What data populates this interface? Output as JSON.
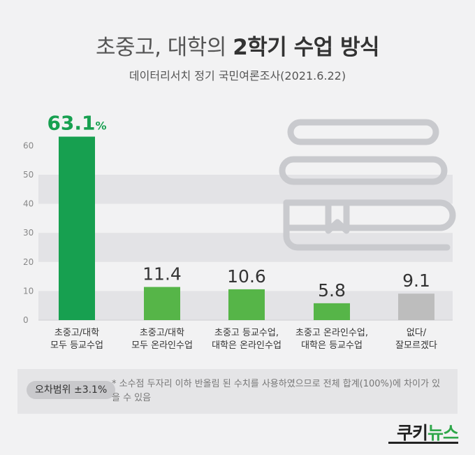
{
  "header": {
    "title_prefix": "초중고, 대학의 ",
    "title_bold": "2학기 수업 방식",
    "subtitle": "데이터리서치 정기 국민여론조사(2021.6.22)"
  },
  "chart_data": {
    "type": "bar",
    "categories": [
      "초중고/대학\n모두 등교수업",
      "초중고/대학\n모두 온라인수업",
      "초중고 등교수업,\n대학은 온라인수업",
      "초중고 온라인수업,\n대학은 등교수업",
      "없다/\n잘모르겠다"
    ],
    "values": [
      63.1,
      11.4,
      10.6,
      5.8,
      9.1
    ],
    "value_labels": [
      "63.1",
      "11.4",
      "10.6",
      "5.8",
      "9.1"
    ],
    "first_value_suffix": "%",
    "yticks": [
      0,
      10,
      20,
      30,
      40,
      50,
      60
    ],
    "ylim": [
      0,
      65
    ],
    "grid": "alternating bands",
    "colors": [
      "#17a050",
      "#56b548",
      "#56b548",
      "#56b548",
      "#bdbdbd"
    ],
    "highlight_label_color": "#17a050"
  },
  "footer": {
    "badge": "오차범위 ±3.1%",
    "note": "* 소수점 두자리 이하 반올림 된 수치를 사용하였으므로 전체 합계(100%)에 차이가 있을 수 있음",
    "logo_main": "쿠키",
    "logo_accent": "뉴스"
  }
}
